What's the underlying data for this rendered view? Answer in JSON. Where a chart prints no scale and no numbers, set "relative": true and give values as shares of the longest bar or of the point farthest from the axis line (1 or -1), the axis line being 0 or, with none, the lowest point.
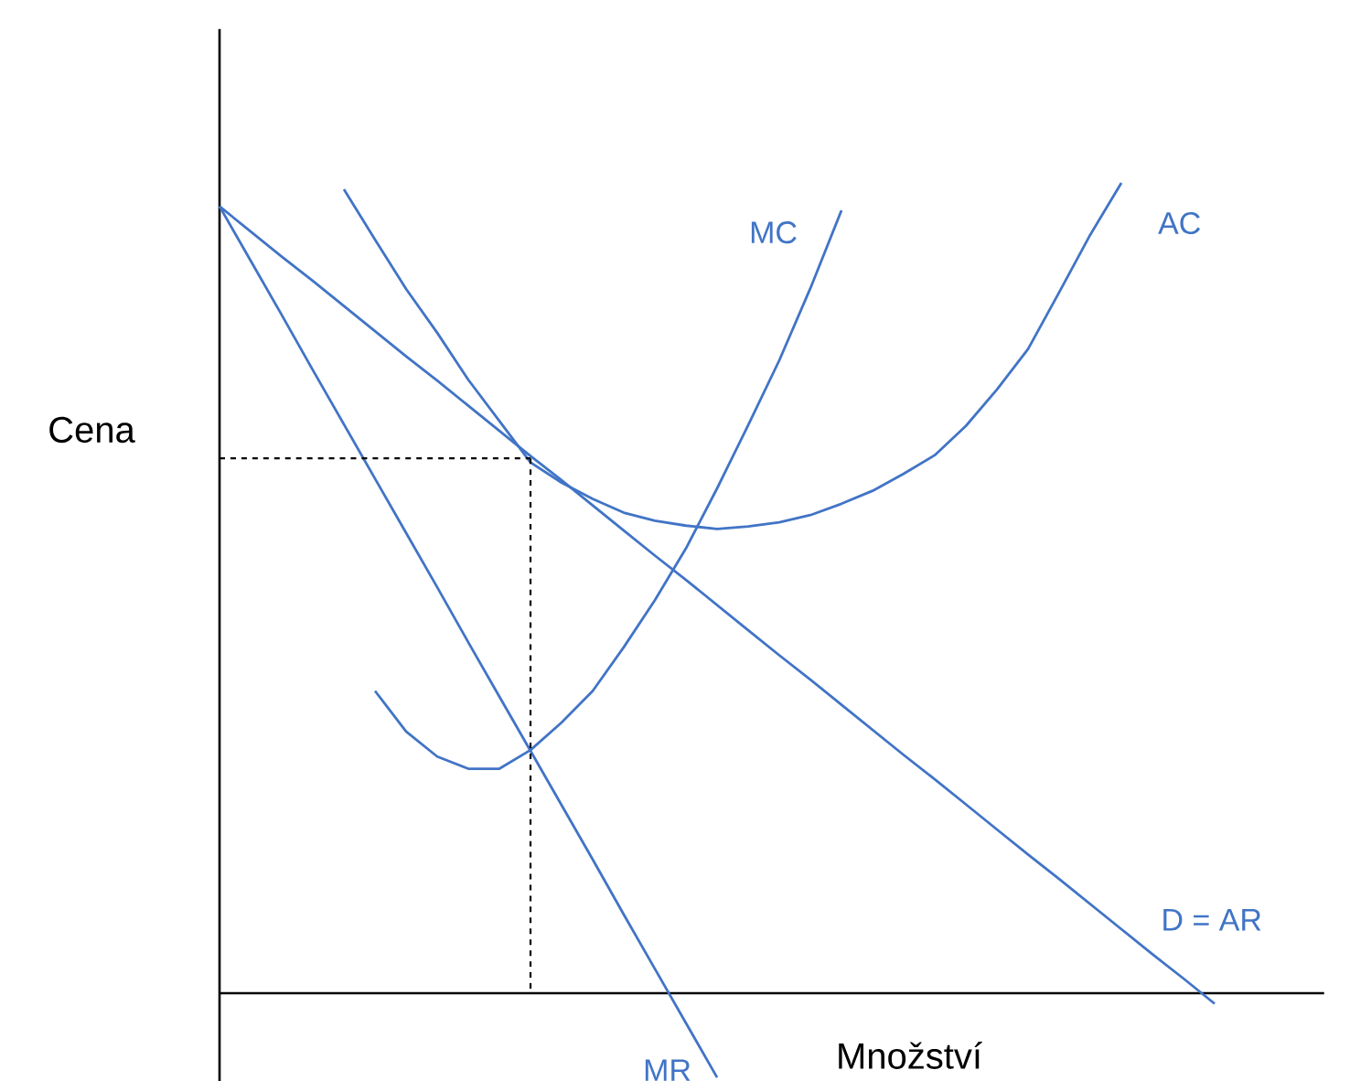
{
  "chart_data": {
    "type": "line",
    "relative": true,
    "xlabel": "Množství",
    "ylabel": "Cena",
    "categories": [
      null,
      null,
      null,
      null,
      null,
      null,
      null,
      null,
      null,
      null,
      null,
      null,
      null,
      null,
      null,
      null,
      null,
      null,
      null,
      null,
      null,
      null,
      null,
      null,
      null,
      null,
      null,
      null,
      null,
      null,
      null,
      null,
      null
    ],
    "series": [
      {
        "name": "D = AR",
        "color": "#4174c6",
        "values": [
          0.971,
          0.94,
          0.909,
          0.879,
          0.848,
          0.817,
          0.786,
          0.756,
          0.725,
          0.694,
          0.663,
          0.633,
          0.602,
          0.571,
          0.54,
          0.51,
          0.479,
          0.448,
          0.417,
          0.387,
          0.356,
          0.325,
          0.294,
          0.264,
          0.233,
          0.202,
          0.171,
          0.141,
          0.11,
          0.079,
          0.048,
          0.018,
          -0.013
        ]
      },
      {
        "name": "MR",
        "color": "#4174c6",
        "values": [
          0.971,
          0.904,
          0.837,
          0.769,
          0.702,
          0.635,
          0.568,
          0.501,
          0.433,
          0.366,
          0.299,
          0.232,
          0.165,
          0.097,
          0.03,
          -0.037,
          -0.104,
          null,
          null,
          null,
          null,
          null,
          null,
          null,
          null,
          null,
          null,
          null,
          null,
          null,
          null,
          null,
          null
        ]
      },
      {
        "name": "AC",
        "color": "#4174c6",
        "values": [
          null,
          null,
          null,
          null,
          0.992,
          0.93,
          0.869,
          0.815,
          0.757,
          0.706,
          0.655,
          0.63,
          0.61,
          0.593,
          0.583,
          0.577,
          0.573,
          0.576,
          0.581,
          0.59,
          0.604,
          0.62,
          0.641,
          0.664,
          0.7,
          0.745,
          0.795,
          0.865,
          0.936,
          1.0,
          null,
          null,
          null
        ]
      },
      {
        "name": "MC",
        "color": "#4174c6",
        "values": [
          null,
          null,
          null,
          null,
          null,
          0.373,
          0.323,
          0.292,
          0.277,
          0.277,
          0.3,
          0.334,
          0.373,
          0.427,
          0.485,
          0.549,
          0.623,
          0.701,
          0.781,
          0.87,
          0.966,
          null,
          null,
          null,
          null,
          null,
          null,
          null,
          null,
          null,
          null,
          null,
          null
        ]
      },
      {
        "color": "#000000",
        "line_style": "dashed",
        "values": [
          0.66,
          0.66,
          0.66,
          0.66,
          0.66,
          0.66,
          0.66,
          0.66,
          0.66,
          0.66,
          0.66,
          null,
          null,
          null,
          null,
          null,
          null,
          null,
          null,
          null,
          null,
          null,
          null,
          null,
          null,
          null,
          null,
          null,
          null,
          null,
          null,
          null,
          null
        ]
      }
    ]
  }
}
